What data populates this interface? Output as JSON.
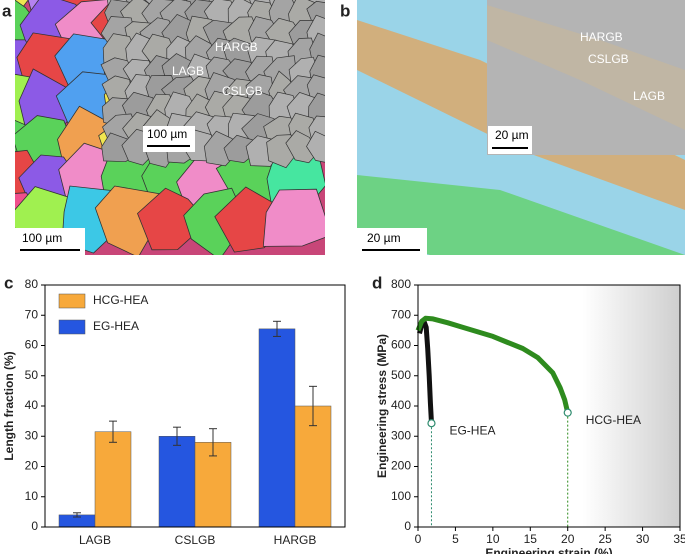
{
  "panel_labels": [
    "a",
    "b",
    "c",
    "d"
  ],
  "images": [
    {
      "annotations": [
        "HARGB",
        "LAGB",
        "CSLGB"
      ],
      "scale_bars": [
        "100 µm",
        "100 µm"
      ]
    },
    {
      "annotations": [
        "HARGB",
        "CSLGB",
        "LAGB"
      ],
      "scale_bars": [
        "20 µm",
        "20 µm"
      ]
    }
  ],
  "chart_data": [
    {
      "type": "bar",
      "y_label": "Length fraction (%)",
      "categories": [
        "LAGB",
        "CSLGB",
        "HARGB"
      ],
      "series": [
        {
          "name": "EG-HEA",
          "color": "#2556e0",
          "values": [
            4,
            30,
            65.5
          ],
          "errors": [
            0.7,
            3,
            2.5
          ]
        },
        {
          "name": "HCG-HEA",
          "color": "#f7a93b",
          "values": [
            31.5,
            28,
            40
          ],
          "errors": [
            3.5,
            4.5,
            6.5
          ]
        }
      ],
      "ylim": [
        0,
        80
      ],
      "yticks": [
        0,
        10,
        20,
        30,
        40,
        50,
        60,
        70,
        80
      ],
      "legend": "upper-left"
    },
    {
      "type": "line",
      "x_label": "Engineering strain (%)",
      "y_label": "Engineering stress (MPa)",
      "series": [
        {
          "name": "EG-HEA",
          "color": "#111111",
          "x": [
            0.2,
            0.5,
            0.8,
            1.1,
            1.3,
            1.5,
            1.65,
            1.8
          ],
          "values": [
            640,
            668,
            680,
            660,
            590,
            500,
            410,
            343
          ]
        },
        {
          "name": "HCG-HEA",
          "color": "#2e8b1e",
          "x": [
            0,
            0.5,
            1,
            2,
            4,
            6,
            8,
            10,
            12,
            14,
            16,
            18,
            19,
            19.6,
            20
          ],
          "values": [
            650,
            680,
            690,
            688,
            675,
            660,
            645,
            630,
            610,
            590,
            560,
            510,
            460,
            420,
            378
          ]
        }
      ],
      "shaded_region": [
        22,
        35
      ],
      "xlim": [
        0,
        35
      ],
      "xticks": [
        0,
        5,
        10,
        15,
        20,
        25,
        30,
        35
      ],
      "ylim": [
        0,
        800
      ],
      "yticks": [
        0,
        100,
        200,
        300,
        400,
        500,
        600,
        700,
        800
      ]
    }
  ]
}
